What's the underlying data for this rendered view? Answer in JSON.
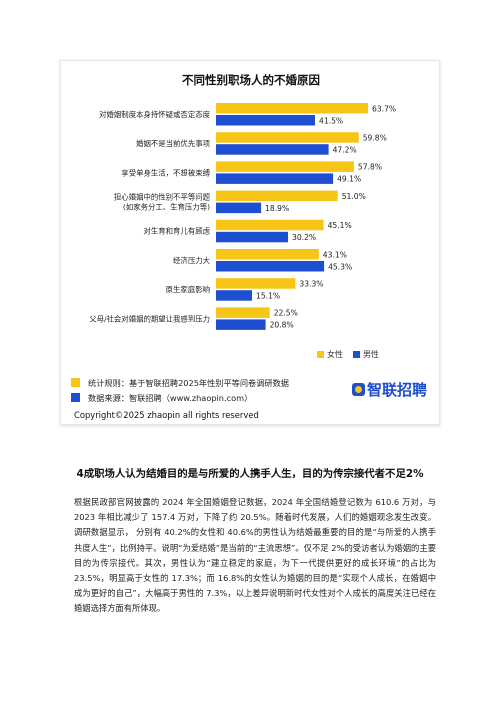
{
  "chart_data": {
    "type": "bar",
    "orientation": "horizontal",
    "title": "不同性别职场人的不婚原因",
    "categories": [
      [
        "对婚姻制度本身持怀疑或否定态度"
      ],
      [
        "婚姻不是当前优先事项"
      ],
      [
        "享受单身生活，不想被束缚"
      ],
      [
        "担心婚姻中的性别不平等问题",
        "(如家务分工、生育压力等)"
      ],
      [
        "对生育和育儿有顾虑"
      ],
      [
        "经济压力大"
      ],
      [
        "原生家庭影响"
      ],
      [
        "父母/社会对婚姻的期望让我感到压力"
      ]
    ],
    "series": [
      {
        "name": "女性",
        "color": "#f6c515",
        "values": [
          63.7,
          59.8,
          57.8,
          51.0,
          45.1,
          43.1,
          33.3,
          22.5
        ]
      },
      {
        "name": "男性",
        "color": "#1f4fd1",
        "values": [
          41.5,
          47.2,
          49.1,
          18.9,
          30.2,
          45.3,
          15.1,
          20.8
        ]
      }
    ],
    "value_suffix": "%",
    "xlim": [
      0,
      70
    ],
    "grid": false,
    "legend_position": "bottom-right"
  },
  "legend": {
    "female": "女性",
    "male": "男性"
  },
  "footer": {
    "stat_rule": "统计规则：基于智联招聘2025年性别平等问卷调研数据",
    "data_source": "数据来源：智联招聘（www.zhaopin.com）",
    "brand": "智联招聘",
    "copyright": "Copyright©2025 zhaopin all rights reserved"
  },
  "article": {
    "title": "4成职场人认为结婚目的是与所爱的人携手人生，目的为传宗接代者不足2%",
    "paragraphs": [
      "根据民政部官网披露的 2024 年全国婚姻登记数据，2024 年全国结婚登记数为 610.6 万对，与 2023 年相比减少了 157.4 万对，下降了约 20.5%。随着时代发展，人们的婚姻观念发生改变。调研数据显示， 分别有 40.2%的女性和 40.6%的男性认为结婚最重要的目的是“与所爱的人携手共度人生”，比例持平。说明“为爱结婚”是当前的“主流思想”。仅不足 2%的受访者认为婚姻的主要目的为传宗接代。其次，男性认为“建立稳定的家庭，为下一代提供更好的成长环境”的占比为 23.5%，明显高于女性的 17.3%；而 16.8%的女性认为婚姻的目的是“实现个人成长，在婚姻中成为更好的自己”，大幅高于男性的 7.3%，以上差异说明新时代女性对个人成长的高度关注已经在婚姻选择方面有所体现。"
    ]
  }
}
